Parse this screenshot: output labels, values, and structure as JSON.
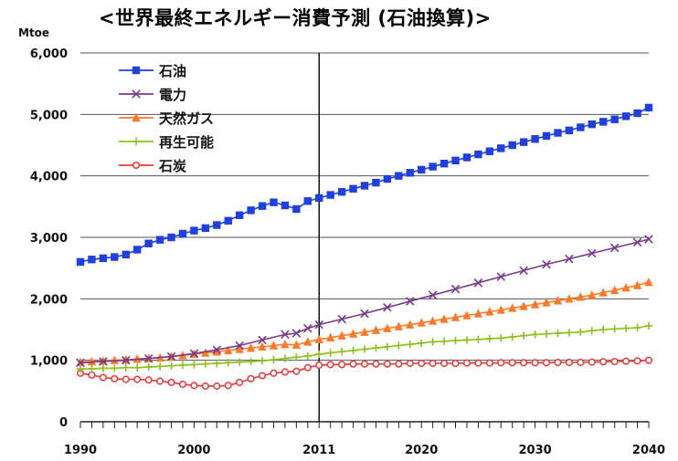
{
  "title": "<世界最終エネルギー消費予測 (石油換算)>",
  "chart_data": {
    "type": "line",
    "title": "<世界最終エネルギー消費予測 (石油換算)>",
    "ylabel": "Mtoe",
    "xlabel": "",
    "xlim": [
      1990,
      2040
    ],
    "ylim": [
      0,
      6000
    ],
    "yticks": [
      0,
      1000,
      2000,
      3000,
      4000,
      5000,
      6000
    ],
    "ytick_labels": [
      "0",
      "1,000",
      "2,000",
      "3,000",
      "4,000",
      "5,000",
      "6,000"
    ],
    "xticks": [
      1990,
      2000,
      2011,
      2020,
      2030,
      2040
    ],
    "xtick_labels": [
      "1990",
      "2000",
      "2011",
      "2020",
      "2030",
      "2040"
    ],
    "vline_x": 2011,
    "grid": "horizontal",
    "legend_position": "top-left",
    "series": [
      {
        "name": "石油",
        "color": "#1f3fe0",
        "marker": "square",
        "points": [
          [
            1990,
            2600
          ],
          [
            1991,
            2640
          ],
          [
            1992,
            2660
          ],
          [
            1993,
            2680
          ],
          [
            1994,
            2720
          ],
          [
            1995,
            2800
          ],
          [
            1996,
            2900
          ],
          [
            1997,
            2960
          ],
          [
            1998,
            3000
          ],
          [
            1999,
            3060
          ],
          [
            2000,
            3110
          ],
          [
            2001,
            3150
          ],
          [
            2002,
            3200
          ],
          [
            2003,
            3270
          ],
          [
            2004,
            3360
          ],
          [
            2005,
            3440
          ],
          [
            2006,
            3510
          ],
          [
            2007,
            3570
          ],
          [
            2008,
            3520
          ],
          [
            2009,
            3460
          ],
          [
            2010,
            3590
          ],
          [
            2011,
            3640
          ],
          [
            2012,
            3690
          ],
          [
            2013,
            3740
          ],
          [
            2014,
            3790
          ],
          [
            2015,
            3840
          ],
          [
            2016,
            3890
          ],
          [
            2017,
            3950
          ],
          [
            2018,
            4000
          ],
          [
            2019,
            4050
          ],
          [
            2020,
            4100
          ],
          [
            2021,
            4150
          ],
          [
            2022,
            4200
          ],
          [
            2023,
            4250
          ],
          [
            2024,
            4300
          ],
          [
            2025,
            4350
          ],
          [
            2026,
            4400
          ],
          [
            2027,
            4450
          ],
          [
            2028,
            4500
          ],
          [
            2029,
            4550
          ],
          [
            2030,
            4600
          ],
          [
            2031,
            4650
          ],
          [
            2032,
            4700
          ],
          [
            2033,
            4740
          ],
          [
            2034,
            4790
          ],
          [
            2035,
            4840
          ],
          [
            2036,
            4880
          ],
          [
            2037,
            4920
          ],
          [
            2038,
            4970
          ],
          [
            2039,
            5020
          ],
          [
            2040,
            5110
          ]
        ]
      },
      {
        "name": "電力",
        "color": "#7a3a8c",
        "marker": "x",
        "points": [
          [
            1990,
            960
          ],
          [
            1992,
            980
          ],
          [
            1994,
            1000
          ],
          [
            1996,
            1030
          ],
          [
            1998,
            1060
          ],
          [
            2000,
            1110
          ],
          [
            2002,
            1170
          ],
          [
            2004,
            1240
          ],
          [
            2006,
            1330
          ],
          [
            2008,
            1420
          ],
          [
            2009,
            1440
          ],
          [
            2010,
            1520
          ],
          [
            2011,
            1580
          ],
          [
            2013,
            1670
          ],
          [
            2015,
            1760
          ],
          [
            2017,
            1860
          ],
          [
            2019,
            1960
          ],
          [
            2021,
            2060
          ],
          [
            2023,
            2160
          ],
          [
            2025,
            2260
          ],
          [
            2027,
            2360
          ],
          [
            2029,
            2460
          ],
          [
            2031,
            2560
          ],
          [
            2033,
            2650
          ],
          [
            2035,
            2740
          ],
          [
            2037,
            2830
          ],
          [
            2039,
            2920
          ],
          [
            2040,
            2970
          ]
        ]
      },
      {
        "name": "天然ガス",
        "color": "#ff7a28",
        "marker": "triangle",
        "points": [
          [
            1990,
            970
          ],
          [
            1991,
            980
          ],
          [
            1992,
            990
          ],
          [
            1993,
            1000
          ],
          [
            1994,
            1010
          ],
          [
            1995,
            1020
          ],
          [
            1996,
            1030
          ],
          [
            1997,
            1040
          ],
          [
            1998,
            1060
          ],
          [
            1999,
            1080
          ],
          [
            2000,
            1100
          ],
          [
            2001,
            1120
          ],
          [
            2002,
            1140
          ],
          [
            2003,
            1160
          ],
          [
            2004,
            1180
          ],
          [
            2005,
            1200
          ],
          [
            2006,
            1220
          ],
          [
            2007,
            1240
          ],
          [
            2008,
            1260
          ],
          [
            2009,
            1250
          ],
          [
            2010,
            1300
          ],
          [
            2011,
            1340
          ],
          [
            2012,
            1370
          ],
          [
            2013,
            1400
          ],
          [
            2014,
            1430
          ],
          [
            2015,
            1460
          ],
          [
            2016,
            1490
          ],
          [
            2017,
            1520
          ],
          [
            2018,
            1550
          ],
          [
            2019,
            1580
          ],
          [
            2020,
            1610
          ],
          [
            2021,
            1640
          ],
          [
            2022,
            1670
          ],
          [
            2023,
            1700
          ],
          [
            2024,
            1730
          ],
          [
            2025,
            1760
          ],
          [
            2026,
            1790
          ],
          [
            2027,
            1820
          ],
          [
            2028,
            1850
          ],
          [
            2029,
            1880
          ],
          [
            2030,
            1910
          ],
          [
            2031,
            1940
          ],
          [
            2032,
            1970
          ],
          [
            2033,
            2000
          ],
          [
            2034,
            2030
          ],
          [
            2035,
            2060
          ],
          [
            2036,
            2100
          ],
          [
            2037,
            2140
          ],
          [
            2038,
            2180
          ],
          [
            2039,
            2220
          ],
          [
            2040,
            2270
          ]
        ]
      },
      {
        "name": "再生可能",
        "color": "#8cc21a",
        "marker": "plus",
        "points": [
          [
            1990,
            860
          ],
          [
            1991,
            860
          ],
          [
            1992,
            870
          ],
          [
            1993,
            870
          ],
          [
            1994,
            880
          ],
          [
            1995,
            880
          ],
          [
            1996,
            890
          ],
          [
            1997,
            900
          ],
          [
            1998,
            910
          ],
          [
            1999,
            920
          ],
          [
            2000,
            930
          ],
          [
            2001,
            940
          ],
          [
            2002,
            950
          ],
          [
            2003,
            960
          ],
          [
            2004,
            970
          ],
          [
            2005,
            980
          ],
          [
            2006,
            990
          ],
          [
            2007,
            1010
          ],
          [
            2008,
            1030
          ],
          [
            2009,
            1050
          ],
          [
            2010,
            1070
          ],
          [
            2011,
            1100
          ],
          [
            2012,
            1120
          ],
          [
            2013,
            1140
          ],
          [
            2014,
            1160
          ],
          [
            2015,
            1180
          ],
          [
            2016,
            1200
          ],
          [
            2017,
            1220
          ],
          [
            2018,
            1240
          ],
          [
            2019,
            1260
          ],
          [
            2020,
            1280
          ],
          [
            2021,
            1300
          ],
          [
            2022,
            1310
          ],
          [
            2023,
            1320
          ],
          [
            2024,
            1330
          ],
          [
            2025,
            1340
          ],
          [
            2026,
            1350
          ],
          [
            2027,
            1360
          ],
          [
            2028,
            1380
          ],
          [
            2029,
            1400
          ],
          [
            2030,
            1420
          ],
          [
            2031,
            1430
          ],
          [
            2032,
            1440
          ],
          [
            2033,
            1450
          ],
          [
            2034,
            1460
          ],
          [
            2035,
            1480
          ],
          [
            2036,
            1500
          ],
          [
            2037,
            1510
          ],
          [
            2038,
            1520
          ],
          [
            2039,
            1530
          ],
          [
            2040,
            1560
          ]
        ]
      },
      {
        "name": "石炭",
        "color": "#e83838",
        "marker": "circle",
        "points": [
          [
            1990,
            790
          ],
          [
            1991,
            760
          ],
          [
            1992,
            720
          ],
          [
            1993,
            700
          ],
          [
            1994,
            690
          ],
          [
            1995,
            690
          ],
          [
            1996,
            680
          ],
          [
            1997,
            660
          ],
          [
            1998,
            640
          ],
          [
            1999,
            610
          ],
          [
            2000,
            590
          ],
          [
            2001,
            580
          ],
          [
            2002,
            580
          ],
          [
            2003,
            590
          ],
          [
            2004,
            640
          ],
          [
            2005,
            700
          ],
          [
            2006,
            750
          ],
          [
            2007,
            790
          ],
          [
            2008,
            810
          ],
          [
            2009,
            820
          ],
          [
            2010,
            880
          ],
          [
            2011,
            920
          ],
          [
            2012,
            930
          ],
          [
            2013,
            930
          ],
          [
            2014,
            940
          ],
          [
            2015,
            940
          ],
          [
            2016,
            940
          ],
          [
            2017,
            940
          ],
          [
            2018,
            940
          ],
          [
            2019,
            950
          ],
          [
            2020,
            950
          ],
          [
            2021,
            950
          ],
          [
            2022,
            950
          ],
          [
            2023,
            950
          ],
          [
            2024,
            955
          ],
          [
            2025,
            955
          ],
          [
            2026,
            955
          ],
          [
            2027,
            960
          ],
          [
            2028,
            960
          ],
          [
            2029,
            960
          ],
          [
            2030,
            960
          ],
          [
            2031,
            960
          ],
          [
            2032,
            965
          ],
          [
            2033,
            965
          ],
          [
            2034,
            965
          ],
          [
            2035,
            970
          ],
          [
            2036,
            975
          ],
          [
            2037,
            980
          ],
          [
            2038,
            985
          ],
          [
            2039,
            990
          ],
          [
            2040,
            1000
          ]
        ]
      }
    ]
  }
}
